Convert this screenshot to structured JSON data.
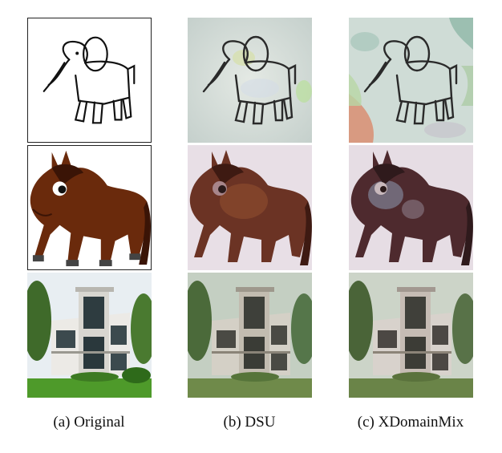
{
  "figure": {
    "columns": [
      {
        "caption": "(a) Original"
      },
      {
        "caption": "(b) DSU"
      },
      {
        "caption": "(c) XDomainMix"
      }
    ],
    "rows": [
      {
        "subject": "elephant sketch"
      },
      {
        "subject": "cartoon horse"
      },
      {
        "subject": "modern house photo"
      }
    ]
  }
}
